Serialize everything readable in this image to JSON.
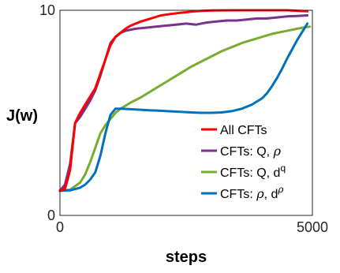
{
  "chart_data": {
    "type": "line",
    "title": "",
    "xlabel": "steps",
    "ylabel": "J(w)",
    "xlim": [
      0,
      5000
    ],
    "ylim": [
      0,
      10
    ],
    "xticks": [
      0,
      5000
    ],
    "yticks": [
      0,
      10
    ],
    "x_tick_labels": [
      "0",
      "5000"
    ],
    "y_tick_labels": [
      "0",
      "10"
    ],
    "grid": false,
    "legend_position": "lower-right",
    "series": [
      {
        "name": "All CFTs",
        "legend_parts": [
          "All CFTs"
        ],
        "color": "#ff0000",
        "x": [
          0,
          100,
          200,
          300,
          400,
          500,
          600,
          700,
          800,
          900,
          1000,
          1100,
          1200,
          1300,
          1400,
          1500,
          1600,
          1800,
          2000,
          2200,
          2400,
          2600,
          2800,
          3000,
          3500,
          4000,
          4500,
          4900
        ],
        "y": [
          1.2,
          1.3,
          2.2,
          4.5,
          5.0,
          5.4,
          5.8,
          6.2,
          6.9,
          7.6,
          8.3,
          8.7,
          8.9,
          9.1,
          9.25,
          9.35,
          9.45,
          9.6,
          9.75,
          9.82,
          9.88,
          9.93,
          9.97,
          9.99,
          10.0,
          10.0,
          10.0,
          9.95
        ]
      },
      {
        "name": "CFTs: Q, ρ",
        "legend_parts": [
          "CFTs: Q, ",
          "ρ",
          ""
        ],
        "color": "#7e2f8e",
        "x": [
          0,
          100,
          200,
          300,
          400,
          500,
          600,
          700,
          800,
          900,
          1000,
          1100,
          1200,
          1300,
          1400,
          1500,
          1700,
          1900,
          2100,
          2300,
          2500,
          2700,
          2900,
          3100,
          3300,
          3500,
          3700,
          3900,
          4100,
          4300,
          4500,
          4700,
          4900
        ],
        "y": [
          1.2,
          1.5,
          2.5,
          4.5,
          4.8,
          5.2,
          5.6,
          6.1,
          6.8,
          7.6,
          8.4,
          8.7,
          8.9,
          9.0,
          9.05,
          9.1,
          9.15,
          9.2,
          9.25,
          9.3,
          9.35,
          9.3,
          9.4,
          9.45,
          9.5,
          9.5,
          9.55,
          9.6,
          9.6,
          9.65,
          9.7,
          9.72,
          9.75
        ]
      },
      {
        "name": "CFTs: Q, d^q",
        "legend_parts": [
          "CFTs: Q, d",
          "",
          "q"
        ],
        "color": "#77ac30",
        "x": [
          0,
          200,
          400,
          500,
          600,
          700,
          800,
          900,
          1000,
          1100,
          1200,
          1400,
          1600,
          1800,
          2000,
          2200,
          2400,
          2600,
          2800,
          3000,
          3200,
          3400,
          3600,
          3800,
          4000,
          4200,
          4400,
          4600,
          4800,
          4950
        ],
        "y": [
          1.2,
          1.25,
          1.6,
          2.0,
          2.6,
          3.3,
          4.0,
          4.4,
          4.7,
          5.0,
          5.2,
          5.5,
          5.75,
          6.05,
          6.35,
          6.65,
          6.95,
          7.25,
          7.5,
          7.75,
          8.0,
          8.2,
          8.4,
          8.55,
          8.7,
          8.85,
          8.95,
          9.05,
          9.15,
          9.2
        ]
      },
      {
        "name": "CFTs: ρ, d^ρ",
        "legend_parts": [
          "CFTs: ",
          "ρ",
          ", d"
        ],
        "legend_sup": "ρ",
        "color": "#0072bd",
        "x": [
          0,
          200,
          400,
          500,
          600,
          700,
          800,
          900,
          1000,
          1100,
          1200,
          1400,
          1600,
          1800,
          2000,
          2200,
          2400,
          2600,
          2800,
          3000,
          3200,
          3400,
          3600,
          3800,
          4000,
          4100,
          4200,
          4300,
          4400,
          4500,
          4600,
          4700,
          4800,
          4900
        ],
        "y": [
          1.2,
          1.22,
          1.35,
          1.5,
          1.75,
          2.1,
          2.9,
          4.0,
          4.9,
          5.2,
          5.2,
          5.18,
          5.15,
          5.12,
          5.1,
          5.07,
          5.05,
          5.02,
          5.0,
          5.0,
          5.02,
          5.08,
          5.2,
          5.4,
          5.7,
          5.95,
          6.3,
          6.7,
          7.15,
          7.65,
          8.1,
          8.55,
          8.95,
          9.35
        ]
      }
    ]
  }
}
